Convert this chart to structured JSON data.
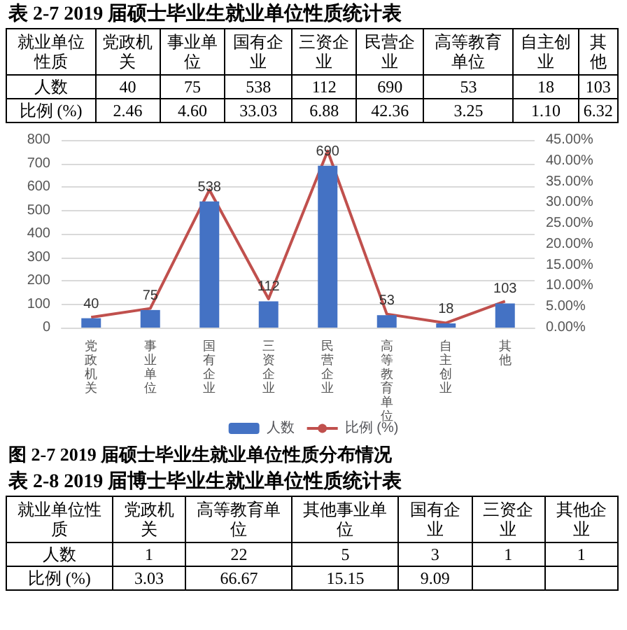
{
  "chart_data": [
    {
      "type": "other",
      "title": "表 2-7 2019 届硕士毕业生就业单位性质统计表",
      "annotations": [
        "就业单位性质"
      ],
      "categories": [
        "党政机关",
        "事业单位",
        "国有企业",
        "三资企业",
        "民营企业",
        "高等教育单位",
        "自主创业",
        "其他"
      ],
      "series": [
        {
          "name": "人数",
          "values": [
            40,
            75,
            538,
            112,
            690,
            53,
            18,
            103
          ],
          "value_labels": [
            "40",
            "75",
            "538",
            "112",
            "690",
            "53",
            "18",
            "103"
          ]
        },
        {
          "name": "比例 (%)",
          "values": [
            2.46,
            4.6,
            33.03,
            6.88,
            42.36,
            3.25,
            1.1,
            6.32
          ],
          "value_labels": [
            "2.46",
            "4.60",
            "33.03",
            "6.88",
            "42.36",
            "3.25",
            "1.10",
            "6.32"
          ]
        }
      ],
      "data_labels": true
    },
    {
      "type": "bar",
      "title": "图 2-7 2019 届硕士毕业生就业单位性质分布情况",
      "categories": [
        "党政机关",
        "事业单位",
        "国有企业",
        "三资企业",
        "民营企业",
        "高等教育单位",
        "自主创业",
        "其他"
      ],
      "series": [
        {
          "name": "人数",
          "type": "bar",
          "color": "#4472c4",
          "values": [
            40,
            75,
            538,
            112,
            690,
            53,
            18,
            103
          ],
          "value_labels": [
            "40",
            "75",
            "538",
            "112",
            "690",
            "53",
            "18",
            "103"
          ]
        },
        {
          "name": "比例 (%)",
          "type": "line",
          "axis": "y2",
          "color": "#c0504d",
          "values": [
            2.46,
            4.6,
            33.03,
            6.88,
            42.36,
            3.25,
            1.1,
            6.32
          ]
        }
      ],
      "ylim": [
        0,
        800
      ],
      "yticks": [
        0,
        100,
        200,
        300,
        400,
        500,
        600,
        700,
        800
      ],
      "y2lim": [
        0,
        45
      ],
      "y2ticks": [
        {
          "value": 0,
          "label": "0.00%"
        },
        {
          "value": 5,
          "label": "5.00%"
        },
        {
          "value": 10,
          "label": "10.00%"
        },
        {
          "value": 15,
          "label": "15.00%"
        },
        {
          "value": 20,
          "label": "20.00%"
        },
        {
          "value": 25,
          "label": "25.00%"
        },
        {
          "value": 30,
          "label": "30.00%"
        },
        {
          "value": 35,
          "label": "35.00%"
        },
        {
          "value": 40,
          "label": "40.00%"
        },
        {
          "value": 45,
          "label": "45.00%"
        }
      ],
      "grid": "y",
      "legend": "bottom",
      "marker": "none",
      "line_style": "solid"
    },
    {
      "type": "other",
      "title": "表 2-8 2019 届博士毕业生就业单位性质统计表",
      "annotations": [
        "就业单位性质"
      ],
      "categories": [
        "党政机关",
        "高等教育单位",
        "其他事业单位",
        "国有企业",
        "三资企业",
        "其他企业"
      ],
      "series": [
        {
          "name": "人数",
          "values": [
            1,
            22,
            5,
            3,
            1,
            1
          ],
          "value_labels": [
            "1",
            "22",
            "5",
            "3",
            "1",
            "1"
          ]
        },
        {
          "name": "比例 (%)",
          "values": [
            3.03,
            66.67,
            15.15,
            9.09,
            null,
            null
          ],
          "value_labels": [
            "3.03",
            "66.67",
            "15.15",
            "9.09",
            null,
            null
          ]
        }
      ],
      "data_labels": true
    }
  ]
}
